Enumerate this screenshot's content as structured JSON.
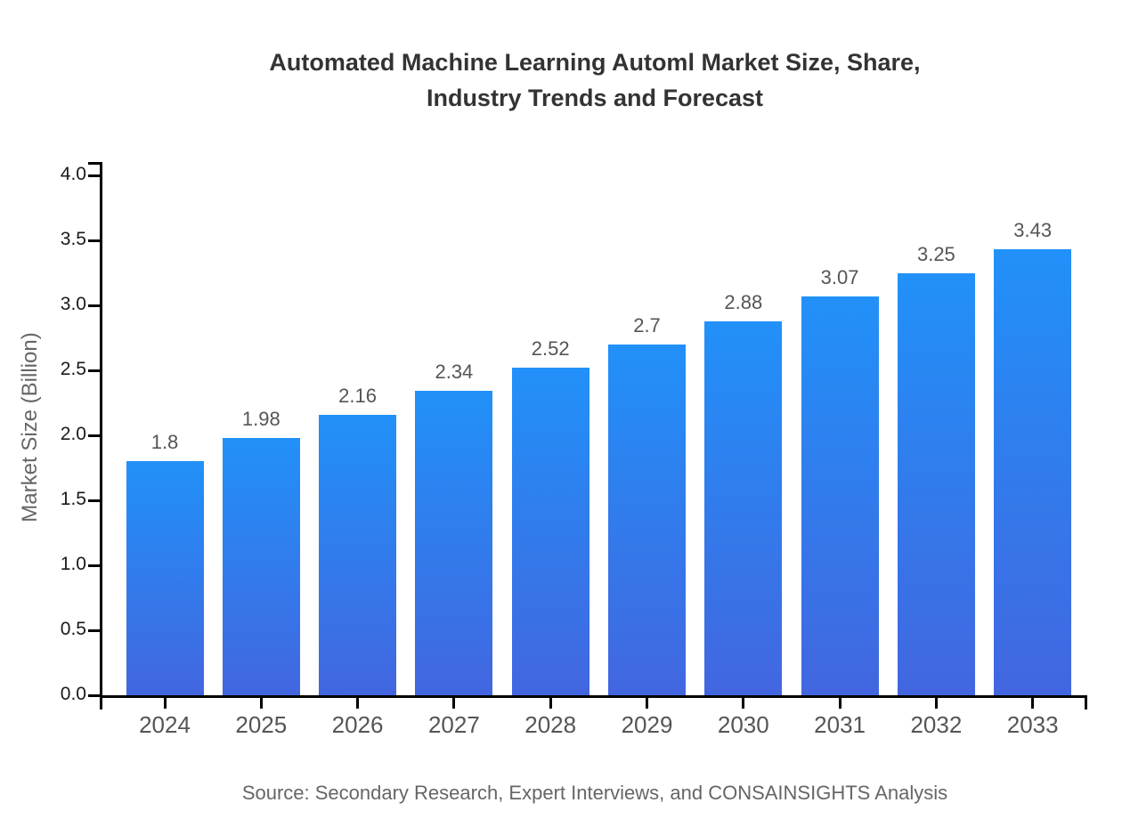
{
  "title": {
    "line1": "Automated Machine Learning Automl Market Size, Share,",
    "line2": "Industry Trends and Forecast"
  },
  "source": "Source: Secondary Research, Expert Interviews, and CONSAINSIGHTS Analysis",
  "chart_data": {
    "type": "bar",
    "title": "Automated Machine Learning Automl Market Size, Share, Industry Trends and Forecast",
    "categories": [
      "2024",
      "2025",
      "2026",
      "2027",
      "2028",
      "2029",
      "2030",
      "2031",
      "2032",
      "2033"
    ],
    "values": [
      1.8,
      1.98,
      2.16,
      2.34,
      2.52,
      2.7,
      2.88,
      3.07,
      3.25,
      3.43
    ],
    "value_labels": [
      "1.8",
      "1.98",
      "2.16",
      "2.34",
      "2.52",
      "2.7",
      "2.88",
      "3.07",
      "3.25",
      "3.43"
    ],
    "xlabel": "",
    "ylabel": "Market Size (Billion)",
    "ylim": [
      0.0,
      4.0
    ],
    "yticks": [
      "0.0",
      "0.5",
      "1.0",
      "1.5",
      "2.0",
      "2.5",
      "3.0",
      "3.5",
      "4.0"
    ],
    "grid": false,
    "legend": false,
    "colors": {
      "bar_gradient_top": "#2191F8",
      "bar_gradient_bottom": "#4266E0",
      "axis": "#000000",
      "ytick_label": "#1a1a1a",
      "category_label": "#555555",
      "value_label": "#555555",
      "title_text": "#333333",
      "muted_text": "#666666"
    }
  }
}
